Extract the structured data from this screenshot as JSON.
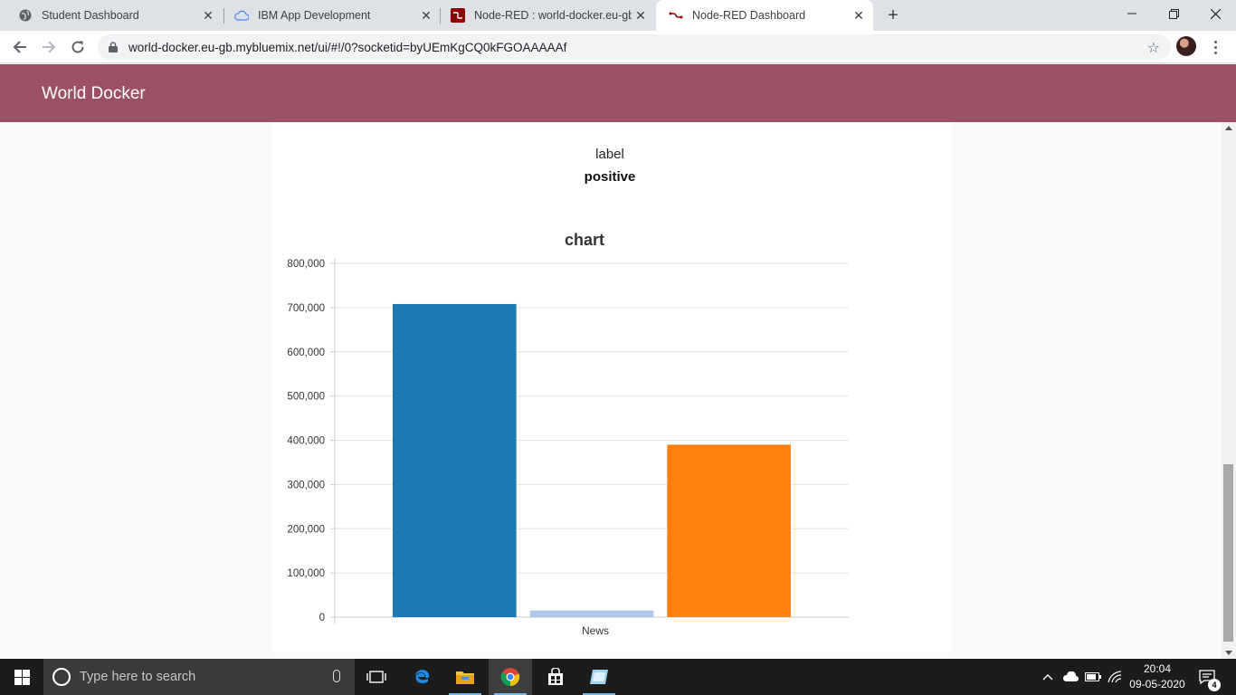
{
  "browser": {
    "tabs": [
      {
        "title": "Student Dashboard",
        "icon": "globe-icon",
        "active": false
      },
      {
        "title": "IBM App Development",
        "icon": "cloud-icon",
        "active": false
      },
      {
        "title": "Node-RED : world-docker.eu-gb.",
        "icon": "node-red-icon",
        "active": false
      },
      {
        "title": "Node-RED Dashboard",
        "icon": "node-red-icon",
        "active": true
      }
    ],
    "url": "world-docker.eu-gb.mybluemix.net/ui/#!/0?socketid=byUEmKgCQ0kFGOAAAAAf"
  },
  "dashboard": {
    "title": "World Docker",
    "header_color": "#9c5063",
    "label_widget": {
      "title": "label",
      "value": "positive"
    }
  },
  "chart_data": {
    "type": "bar",
    "title": "chart",
    "categories": [
      "News"
    ],
    "series": [
      {
        "color": "#1f77b4",
        "values": [
          708000
        ]
      },
      {
        "color": "#aec7e8",
        "values": [
          15000
        ]
      },
      {
        "color": "#ff7f0e",
        "values": [
          390000
        ]
      }
    ],
    "ylim": [
      0,
      800000
    ],
    "yticks": [
      "800,000",
      "700,000",
      "600,000",
      "500,000",
      "400,000",
      "300,000",
      "200,000",
      "100,000",
      "0"
    ],
    "grid": true
  },
  "taskbar": {
    "search_placeholder": "Type here to search",
    "time": "20:04",
    "date": "09-05-2020",
    "notification_count": "4"
  }
}
